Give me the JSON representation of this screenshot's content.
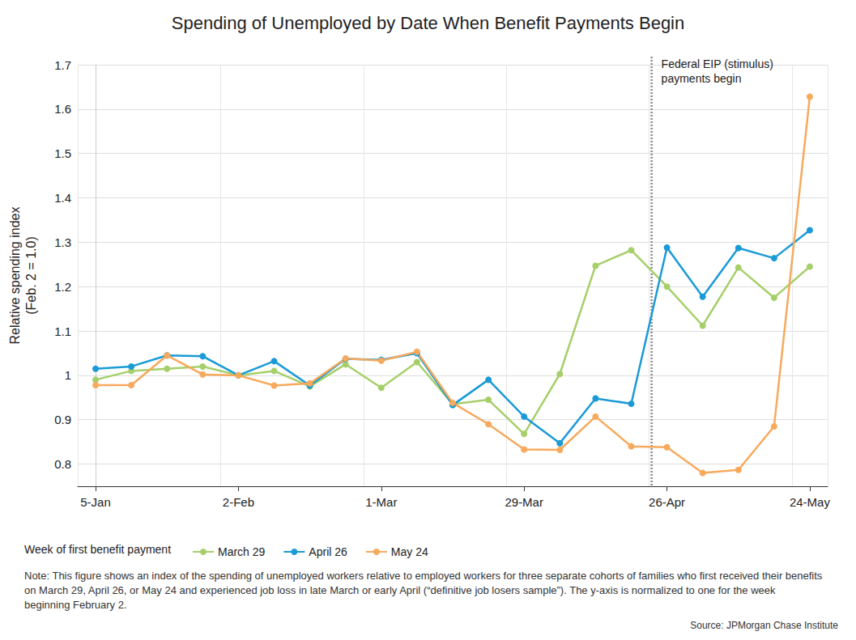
{
  "chart_data": {
    "type": "line",
    "title": "Spending of Unemployed by Date When Benefit Payments Begin",
    "y_label": "Relative spending index\n(Feb. 2 = 1.0)",
    "categories": [
      "5-Jan",
      null,
      null,
      null,
      "2-Feb",
      null,
      null,
      null,
      "1-Mar",
      null,
      null,
      null,
      "29-Mar",
      null,
      null,
      null,
      "26-Apr",
      null,
      null,
      null,
      "24-May"
    ],
    "series": [
      {
        "name": "March 29",
        "color": "#a6cf6a",
        "values": [
          0.99,
          1.01,
          1.015,
          1.02,
          1.0,
          1.01,
          0.975,
          1.025,
          0.972,
          1.03,
          0.935,
          0.945,
          0.868,
          1.003,
          1.247,
          1.282,
          1.2,
          1.112,
          1.243,
          1.175,
          1.245
        ]
      },
      {
        "name": "April 26",
        "color": "#1a9ad6",
        "values": [
          1.015,
          1.02,
          1.045,
          1.043,
          1.0,
          1.032,
          0.977,
          1.037,
          1.035,
          1.05,
          0.933,
          0.99,
          0.907,
          0.847,
          0.948,
          0.936,
          1.288,
          1.177,
          1.287,
          1.264,
          1.327
        ]
      },
      {
        "name": "May 24",
        "color": "#f7a95c",
        "values": [
          0.978,
          0.978,
          1.045,
          1.002,
          1.0,
          0.977,
          0.982,
          1.038,
          1.033,
          1.053,
          0.938,
          0.89,
          0.833,
          0.832,
          0.907,
          0.84,
          0.838,
          0.78,
          0.787,
          0.885,
          1.628
        ]
      }
    ],
    "ylim": [
      0.75,
      1.7
    ],
    "yticks": [
      0.8,
      0.9,
      1,
      1.1,
      1.2,
      1.3,
      1.4,
      1.5,
      1.6,
      1.7
    ],
    "grid": true,
    "marker": "circle",
    "line_style": "solid",
    "legend": "bottom-left",
    "legend_title": "Week of first benefit payment",
    "annotations": [
      {
        "text": "Federal EIP (stimulus)\npayments begin",
        "x": 15.57
      }
    ],
    "note": "Note: This figure shows an index of the spending of unemployed workers relative to employed workers for three separate cohorts of families who first received their benefits on March 29, April 26, or May 24 and experienced job loss in late March or early April (“definitive job losers sample”). The y-axis is normalized to one for the week beginning February 2.",
    "source": "Source: JPMorgan Chase Institute"
  }
}
